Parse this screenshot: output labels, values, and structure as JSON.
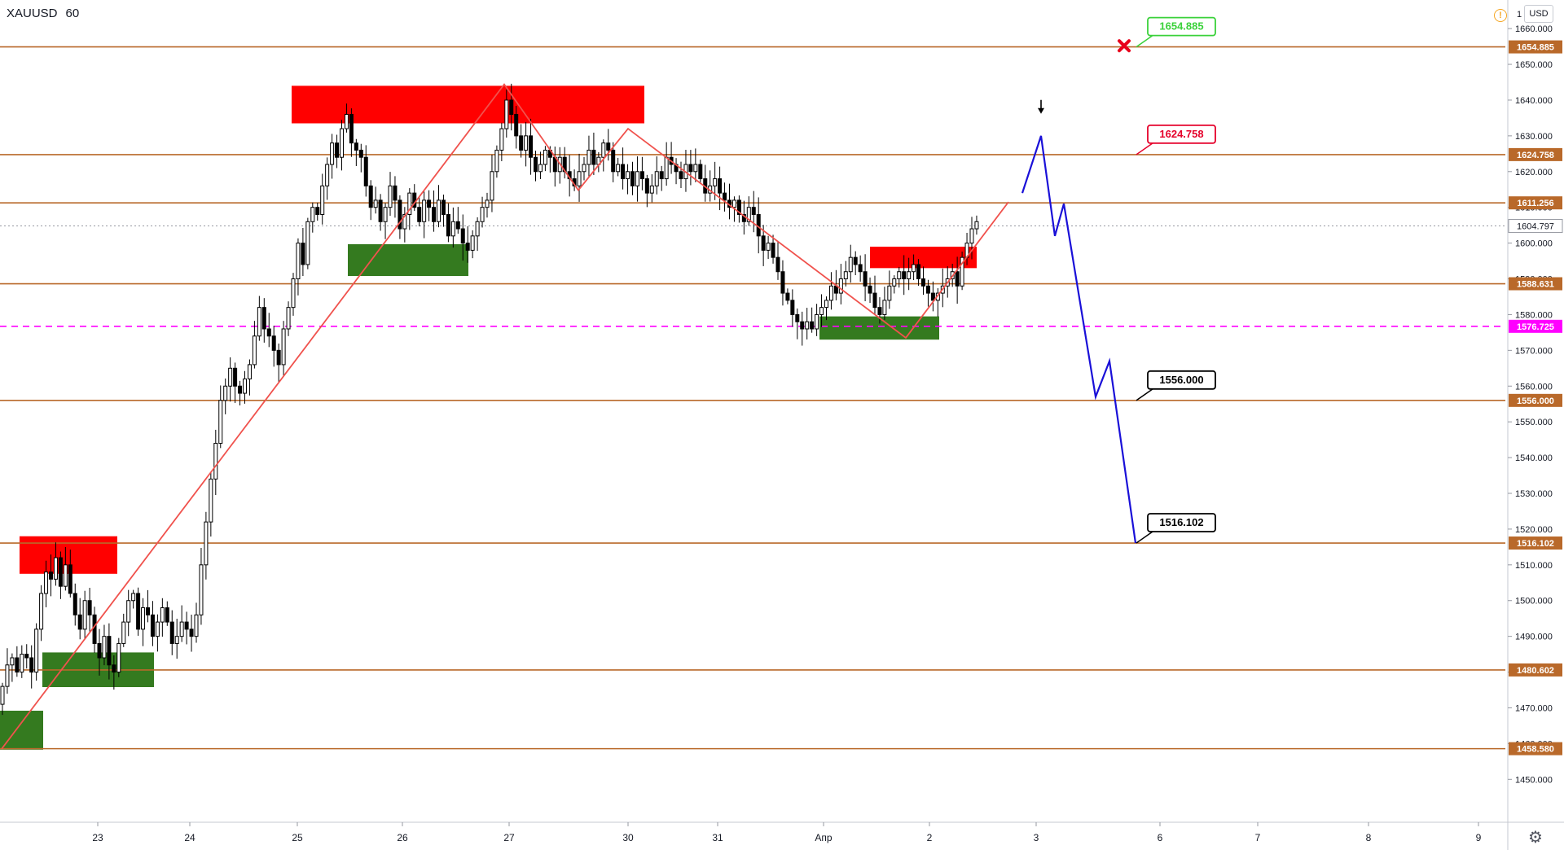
{
  "header": {
    "symbol": "XAUUSD",
    "interval": "60",
    "currency": "USD",
    "warn_glyph": "!",
    "gear_glyph": "⚙",
    "one_label": "1"
  },
  "colors": {
    "level": "#b9692a",
    "supply": "#ff0000",
    "demand": "#347a1f",
    "projection": "#1a10d8",
    "zigzag": "#f0524d",
    "magenta": "#ff00ff",
    "bull": "#ffffff",
    "bear": "#000000"
  },
  "chart_data": {
    "type": "candlestick",
    "symbol": "XAUUSD",
    "interval": "60",
    "ylim": [
      1438.0,
      1668.0
    ],
    "xlim": [
      0,
      1850
    ],
    "y_ticks": [
      1450.0,
      1460.0,
      1470.0,
      1480.0,
      1490.0,
      1500.0,
      1510.0,
      1520.0,
      1530.0,
      1540.0,
      1550.0,
      1560.0,
      1570.0,
      1580.0,
      1590.0,
      1600.0,
      1610.0,
      1620.0,
      1630.0,
      1640.0,
      1650.0,
      1660.0
    ],
    "y_tick_labels": [
      "1450.000",
      "1460.000",
      "1470.000",
      "1480.000",
      "1490.000",
      "1500.000",
      "1510.000",
      "1520.000",
      "1530.000",
      "1540.000",
      "1550.000",
      "1560.000",
      "1570.000",
      "1580.000",
      "1590.000",
      "1600.000",
      "1610.000",
      "1620.000",
      "1630.000",
      "1640.000",
      "1650.000",
      "1660.000"
    ],
    "x_ticks": [
      {
        "label": "23",
        "x": 120
      },
      {
        "label": "24",
        "x": 233
      },
      {
        "label": "25",
        "x": 365
      },
      {
        "label": "26",
        "x": 494
      },
      {
        "label": "27",
        "x": 625
      },
      {
        "label": "30",
        "x": 771
      },
      {
        "label": "31",
        "x": 881
      },
      {
        "label": "Апр",
        "x": 1011
      },
      {
        "label": "2",
        "x": 1141
      },
      {
        "label": "3",
        "x": 1272
      },
      {
        "label": "6",
        "x": 1424
      },
      {
        "label": "7",
        "x": 1544
      },
      {
        "label": "8",
        "x": 1680
      },
      {
        "label": "9",
        "x": 1815
      }
    ],
    "horizontal_levels": [
      {
        "value": 1654.885,
        "label": "1654.885",
        "style": "solid"
      },
      {
        "value": 1624.758,
        "label": "1624.758",
        "style": "solid"
      },
      {
        "value": 1611.256,
        "label": "1611.256",
        "style": "solid"
      },
      {
        "value": 1588.631,
        "label": "1588.631",
        "style": "solid"
      },
      {
        "value": 1576.725,
        "label": "1576.725",
        "style": "dashed"
      },
      {
        "value": 1556.0,
        "label": "1556.000",
        "style": "solid"
      },
      {
        "value": 1516.102,
        "label": "1516.102",
        "style": "solid"
      },
      {
        "value": 1480.602,
        "label": "1480.602",
        "style": "solid"
      },
      {
        "value": 1458.58,
        "label": "1458.580",
        "style": "solid"
      }
    ],
    "last_price": {
      "value": 1604.797,
      "label": "1604.797"
    },
    "zones": [
      {
        "kind": "supply",
        "x0": 24,
        "x1": 144,
        "y_top": 1518.0,
        "y_bottom": 1507.5
      },
      {
        "kind": "demand",
        "x0": 52,
        "x1": 189,
        "y_top": 1485.5,
        "y_bottom": 1475.8
      },
      {
        "kind": "demand",
        "x0": 0,
        "x1": 53,
        "y_top": 1469.2,
        "y_bottom": 1458.3
      },
      {
        "kind": "supply",
        "x0": 358,
        "x1": 791,
        "y_top": 1644.0,
        "y_bottom": 1633.5
      },
      {
        "kind": "demand",
        "x0": 427,
        "x1": 575,
        "y_top": 1599.7,
        "y_bottom": 1590.8
      },
      {
        "kind": "supply",
        "x0": 1068,
        "x1": 1199,
        "y_top": 1599.0,
        "y_bottom": 1593.0
      },
      {
        "kind": "demand",
        "x0": 1006,
        "x1": 1153,
        "y_top": 1579.5,
        "y_bottom": 1573.0
      }
    ],
    "zigzag": [
      [
        2,
        1458.5
      ],
      [
        619,
        1644.4
      ],
      [
        710,
        1614.8
      ],
      [
        771,
        1632.0
      ],
      [
        1112,
        1573.5
      ],
      [
        1238,
        1611.5
      ]
    ],
    "projection": [
      [
        1255,
        1614.0
      ],
      [
        1278,
        1630.0
      ],
      [
        1295,
        1602.0
      ],
      [
        1306,
        1611.0
      ],
      [
        1345,
        1557.0
      ],
      [
        1362,
        1567.0
      ],
      [
        1394,
        1516.1
      ]
    ],
    "callouts": [
      {
        "label": "1654.885",
        "tone": "green",
        "x": 1395,
        "value": 1654.885
      },
      {
        "label": "1624.758",
        "tone": "red",
        "x": 1395,
        "value": 1624.758
      },
      {
        "label": "1556.000",
        "tone": "black",
        "x": 1395,
        "value": 1556.0
      },
      {
        "label": "1516.102",
        "tone": "black",
        "x": 1395,
        "value": 1516.102
      }
    ],
    "markers": [
      {
        "kind": "x-mark",
        "x": 1380,
        "value": 1655.2
      },
      {
        "kind": "arrow-down",
        "x": 1278,
        "value": 1638.0
      }
    ],
    "candles": {
      "x_start": 3,
      "x_step": 5.95,
      "open_start": 1471.0,
      "closes": [
        1476,
        1482,
        1484,
        1480,
        1485,
        1484,
        1480,
        1492,
        1502,
        1508,
        1506,
        1512,
        1504,
        1510,
        1502,
        1496,
        1492,
        1500,
        1496,
        1488,
        1484,
        1490,
        1482,
        1480,
        1488,
        1494,
        1500,
        1502,
        1492,
        1498,
        1496,
        1490,
        1494,
        1498,
        1494,
        1488,
        1490,
        1494,
        1492,
        1490,
        1496,
        1510,
        1522,
        1534,
        1544,
        1556,
        1560,
        1565,
        1560,
        1558,
        1562,
        1566,
        1574,
        1582,
        1576,
        1574,
        1570,
        1566,
        1576,
        1582,
        1590,
        1600,
        1594,
        1606,
        1610,
        1608,
        1616,
        1622,
        1628,
        1624,
        1632,
        1636,
        1628,
        1626,
        1624,
        1616,
        1610,
        1612,
        1606,
        1610,
        1616,
        1612,
        1604,
        1608,
        1614,
        1610,
        1606,
        1612,
        1610,
        1606,
        1612,
        1608,
        1602,
        1606,
        1604,
        1600,
        1598,
        1602,
        1606,
        1610,
        1612,
        1620,
        1626,
        1632,
        1640,
        1636,
        1630,
        1626,
        1630,
        1624,
        1620,
        1622,
        1626,
        1624,
        1620,
        1624,
        1620,
        1618,
        1616,
        1620,
        1622,
        1626,
        1622,
        1624,
        1628,
        1626,
        1620,
        1622,
        1618,
        1620,
        1616,
        1620,
        1618,
        1614,
        1616,
        1620,
        1618,
        1624,
        1622,
        1620,
        1618,
        1622,
        1620,
        1622,
        1618,
        1614,
        1616,
        1618,
        1614,
        1612,
        1610,
        1612,
        1608,
        1606,
        1610,
        1608,
        1602,
        1598,
        1600,
        1596,
        1592,
        1586,
        1584,
        1580,
        1578,
        1576,
        1578,
        1576,
        1580,
        1582,
        1584,
        1588,
        1586,
        1590,
        1592,
        1596,
        1594,
        1592,
        1588,
        1586,
        1582,
        1580,
        1584,
        1588,
        1590,
        1592,
        1590,
        1592,
        1594,
        1590,
        1588,
        1586,
        1584,
        1586,
        1588,
        1590,
        1592,
        1588,
        1596,
        1600,
        1604,
        1606
      ]
    }
  }
}
